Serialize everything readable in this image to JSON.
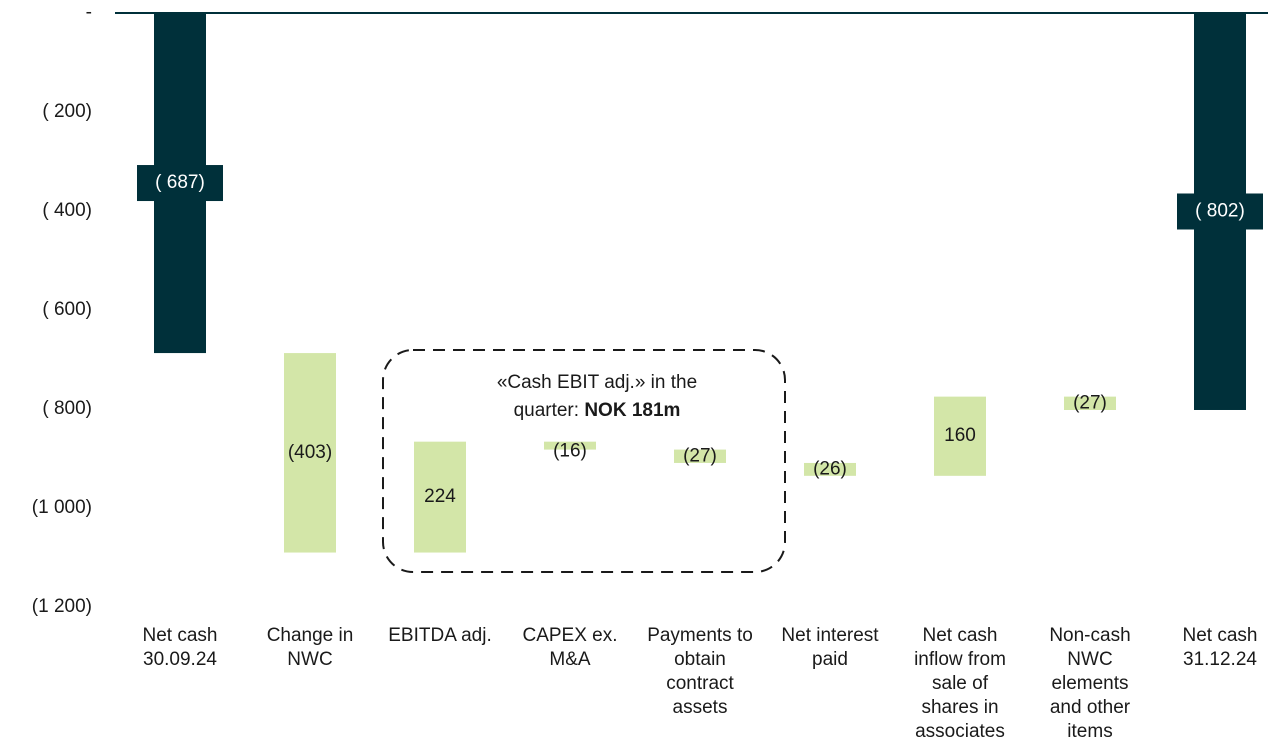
{
  "chart_data": {
    "type": "waterfall",
    "categories": [
      "Net cash 30.09.24",
      "Change in NWC",
      "EBITDA adj.",
      "CAPEX ex. M&A",
      "Payments to obtain contract assets",
      "Net interest paid",
      "Net cash inflow from sale of shares in associates",
      "Non-cash NWC elements and other items",
      "Net cash 31.12.24"
    ],
    "values": [
      -687,
      -403,
      224,
      -16,
      -27,
      -26,
      160,
      -27,
      -802
    ],
    "value_labels": [
      "( 687)",
      "(403)",
      "224",
      "(16)",
      "(27)",
      "(26)",
      "160",
      "(27)",
      "( 802)"
    ],
    "total_color": "#00303a",
    "change_color": "#d3e6a8",
    "ylim": [
      -1200,
      0
    ],
    "yticks": [
      {
        "value": 0,
        "label": "-"
      },
      {
        "value": -200,
        "label": "( 200)"
      },
      {
        "value": -400,
        "label": "( 400)"
      },
      {
        "value": -600,
        "label": "( 600)"
      },
      {
        "value": -800,
        "label": "( 800)"
      },
      {
        "value": -1000,
        "label": "(1 000)"
      },
      {
        "value": -1200,
        "label": "(1 200)"
      }
    ],
    "annotation": {
      "lines": [
        "«Cash EBIT adj.»  in the",
        "quarter:"
      ],
      "highlight": "NOK 181m"
    }
  }
}
